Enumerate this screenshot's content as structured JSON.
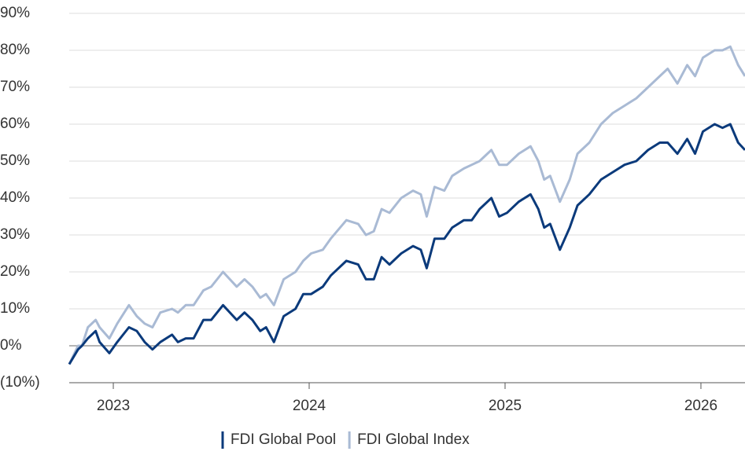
{
  "chart_data": {
    "type": "line",
    "x": [
      2022.775,
      2022.82,
      2022.84,
      2022.87,
      2022.91,
      2022.93,
      2022.98,
      2023.02,
      2023.08,
      2023.12,
      2023.16,
      2023.2,
      2023.24,
      2023.3,
      2023.33,
      2023.37,
      2023.41,
      2023.46,
      2023.5,
      2023.56,
      2023.63,
      2023.67,
      2023.71,
      2023.75,
      2023.78,
      2023.82,
      2023.87,
      2023.93,
      2023.97,
      2024.01,
      2024.07,
      2024.11,
      2024.19,
      2024.25,
      2024.29,
      2024.33,
      2024.37,
      2024.41,
      2024.47,
      2024.53,
      2024.57,
      2024.6,
      2024.64,
      2024.69,
      2024.73,
      2024.79,
      2024.83,
      2024.87,
      2024.93,
      2024.97,
      2025.01,
      2025.07,
      2025.13,
      2025.17,
      2025.2,
      2025.23,
      2025.28,
      2025.33,
      2025.37,
      2025.43,
      2025.49,
      2025.55,
      2025.61,
      2025.67,
      2025.73,
      2025.79,
      2025.83,
      2025.88,
      2025.93,
      2025.97,
      2026.01,
      2026.07,
      2026.11,
      2026.15,
      2026.19,
      2026.225
    ],
    "series": [
      {
        "name": "FDI Global Pool",
        "color": "#0b3a7b",
        "values": [
          -5,
          -1,
          0,
          2,
          4,
          1,
          -2,
          1,
          5,
          4,
          1,
          -1,
          1,
          3,
          1,
          2,
          2,
          7,
          7,
          11,
          7,
          9,
          7,
          4,
          5,
          1,
          8,
          10,
          14,
          14,
          16,
          19,
          23,
          22,
          18,
          18,
          24,
          22,
          25,
          27,
          26,
          21,
          29,
          29,
          32,
          34,
          34,
          37,
          40,
          35,
          36,
          39,
          41,
          37,
          32,
          33,
          26,
          32,
          38,
          41,
          45,
          47,
          49,
          50,
          53,
          55,
          55,
          52,
          56,
          52,
          58,
          60,
          59,
          60,
          55,
          53
        ]
      },
      {
        "name": "FDI Global Index",
        "color": "#a9bad4",
        "values": [
          -5,
          0,
          0,
          5,
          7,
          5,
          2,
          6,
          11,
          8,
          6,
          5,
          9,
          10,
          9,
          11,
          11,
          15,
          16,
          20,
          16,
          18,
          16,
          13,
          14,
          11,
          18,
          20,
          23,
          25,
          26,
          29,
          34,
          33,
          30,
          31,
          37,
          36,
          40,
          42,
          41,
          35,
          43,
          42,
          46,
          48,
          49,
          50,
          53,
          49,
          49,
          52,
          54,
          50,
          45,
          46,
          39,
          45,
          52,
          55,
          60,
          63,
          65,
          67,
          70,
          73,
          75,
          71,
          76,
          73,
          78,
          80,
          80,
          81,
          76,
          73
        ]
      }
    ],
    "xlim": [
      2022.775,
      2026.225
    ],
    "xticks": [
      2023,
      2024,
      2025,
      2026
    ],
    "ylim": [
      -10,
      90
    ],
    "yticks": [
      {
        "value": -10,
        "label": "(10%)"
      },
      {
        "value": 0,
        "label": "0%"
      },
      {
        "value": 10,
        "label": "10%"
      },
      {
        "value": 20,
        "label": "20%"
      },
      {
        "value": 30,
        "label": "30%"
      },
      {
        "value": 40,
        "label": "40%"
      },
      {
        "value": 50,
        "label": "50%"
      },
      {
        "value": 60,
        "label": "60%"
      },
      {
        "value": 70,
        "label": "70%"
      },
      {
        "value": 80,
        "label": "80%"
      },
      {
        "value": 90,
        "label": "90%"
      }
    ],
    "grid": true,
    "legend": "bottom"
  }
}
